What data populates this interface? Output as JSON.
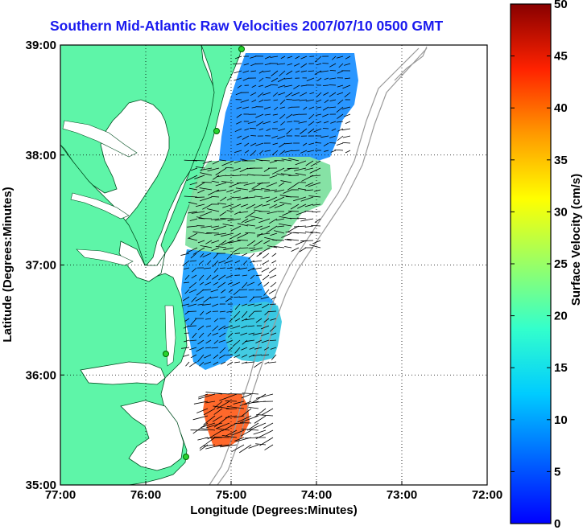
{
  "title": "Southern Mid-Atlantic Raw Velocities 2007/07/10 0500 GMT",
  "map": {
    "xlabel": "Longitude (Degrees:Minutes)",
    "ylabel": "Latitude (Degrees:Minutes)",
    "x_ticks": [
      "77:00",
      "76:00",
      "75:00",
      "74:00",
      "73:00",
      "72:00"
    ],
    "y_ticks": [
      "39:00",
      "38:00",
      "37:00",
      "36:00",
      "35:00"
    ],
    "lon_range": [
      -77,
      -72
    ],
    "lat_range": [
      35,
      39
    ],
    "land_color": "#5ef5a8",
    "grid": true
  },
  "colorbar": {
    "label": "Surface Velocity (cm/s)",
    "ticks": [
      "50",
      "45",
      "40",
      "35",
      "30",
      "25",
      "20",
      "15",
      "10",
      "5",
      "0"
    ],
    "range": [
      0,
      50
    ],
    "colormap": "jet"
  }
}
